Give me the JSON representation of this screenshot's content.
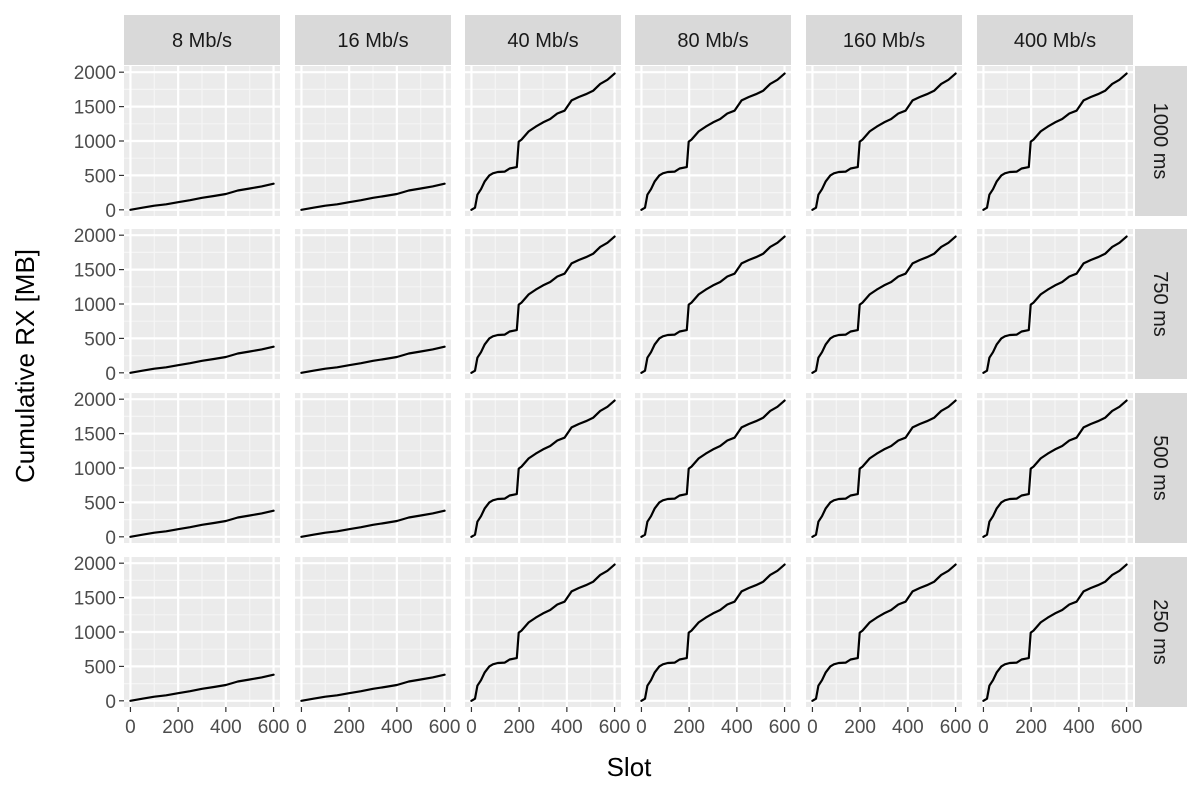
{
  "chart_data": {
    "type": "line",
    "xlabel": "Slot",
    "ylabel": "Cumulative RX [MB]",
    "xlim": [
      0,
      600
    ],
    "ylim": [
      0,
      2000
    ],
    "x_ticks": [
      0,
      200,
      400,
      600
    ],
    "x_tick_labels": [
      "0",
      "200",
      "400",
      "600"
    ],
    "y_ticks": [
      0,
      500,
      1000,
      1500,
      2000
    ],
    "y_tick_labels": [
      "0",
      "500",
      "1000",
      "1500",
      "2000"
    ],
    "grid": true,
    "panel_background": "#ebebeb",
    "strip_background": "#d9d9d9",
    "line_color": "#000000",
    "facet_columns": [
      "8 Mb/s",
      "16 Mb/s",
      "40 Mb/s",
      "80 Mb/s",
      "160 Mb/s",
      "400 Mb/s"
    ],
    "facet_rows": [
      "1000 ms",
      "750 ms",
      "500 ms",
      "250 ms"
    ],
    "curve_profiles": {
      "slow": {
        "x": [
          0,
          50,
          100,
          150,
          200,
          250,
          300,
          350,
          400,
          450,
          500,
          550,
          600
        ],
        "y": [
          0,
          30,
          60,
          80,
          110,
          140,
          175,
          200,
          230,
          280,
          310,
          340,
          380
        ]
      },
      "fast": {
        "x": [
          0,
          15,
          25,
          40,
          55,
          75,
          90,
          110,
          140,
          160,
          190,
          198,
          202,
          210,
          240,
          270,
          300,
          330,
          360,
          390,
          420,
          450,
          480,
          510,
          540,
          570,
          600
        ],
        "y": [
          0,
          30,
          220,
          300,
          410,
          500,
          530,
          550,
          555,
          600,
          620,
          990,
          1000,
          1020,
          1140,
          1210,
          1270,
          1320,
          1400,
          1440,
          1590,
          1640,
          1680,
          1730,
          1830,
          1890,
          1980
        ]
      }
    },
    "panel_profiles": [
      [
        "slow",
        "slow",
        "fast",
        "fast",
        "fast",
        "fast"
      ],
      [
        "slow",
        "slow",
        "fast",
        "fast",
        "fast",
        "fast"
      ],
      [
        "slow",
        "slow",
        "fast",
        "fast",
        "fast",
        "fast"
      ],
      [
        "slow",
        "slow",
        "fast",
        "fast",
        "fast",
        "fast"
      ]
    ]
  }
}
